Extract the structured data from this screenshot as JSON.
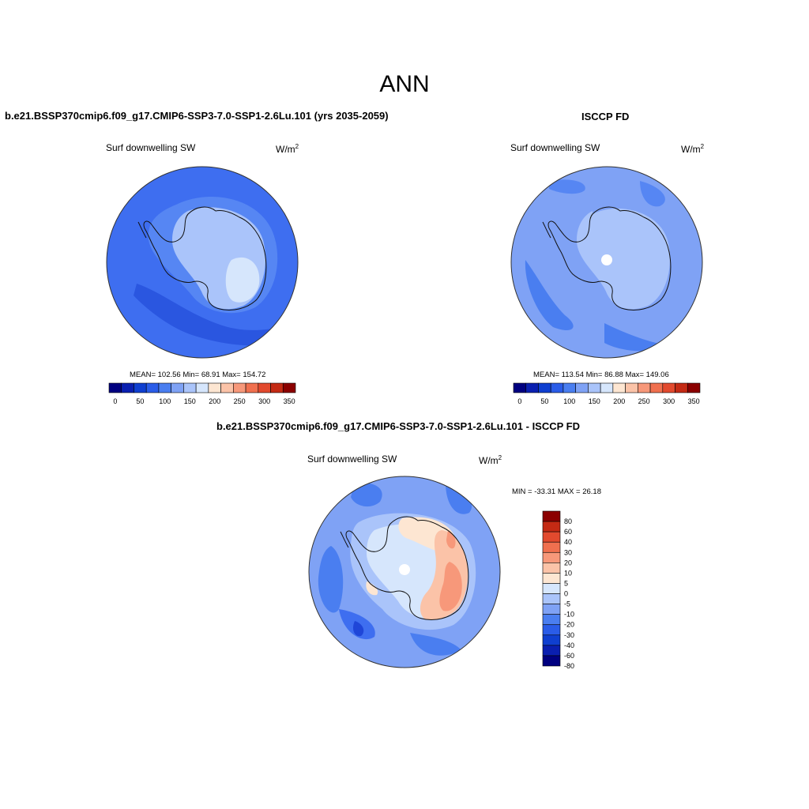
{
  "title": "ANN",
  "panels": [
    {
      "id": "model",
      "title": "b.e21.BSSP370cmip6.f09_g17.CMIP6-SSP3-7.0-SSP1-2.6Lu.101 (yrs 2035-2059)",
      "variable": "Surf downwelling SW",
      "units": "W/m",
      "units_sup": "2",
      "stats": "MEAN= 102.56  Min=  68.91  Max= 154.72"
    },
    {
      "id": "obs",
      "title": "ISCCP FD",
      "variable": "Surf downwelling SW",
      "units": "W/m",
      "units_sup": "2",
      "stats": "MEAN= 113.54  Min=  86.88  Max= 149.06"
    },
    {
      "id": "diff",
      "title": "b.e21.BSSP370cmip6.f09_g17.CMIP6-SSP3-7.0-SSP1-2.6Lu.101 - ISCCP FD",
      "variable": "Surf downwelling SW",
      "units": "W/m",
      "units_sup": "2",
      "stats": "MIN = -33.31 MAX =  26.18"
    }
  ],
  "colorbar_abs": {
    "colors": [
      "#000080",
      "#0a1fb0",
      "#0f3fd0",
      "#2a5ce8",
      "#4a7ef0",
      "#7fa2f5",
      "#aac4fa",
      "#d6e6fc",
      "#fde6d2",
      "#fbc3a8",
      "#f7987a",
      "#f0704f",
      "#e24a2e",
      "#c42a14",
      "#8b0000"
    ],
    "labels": [
      "0",
      "50",
      "100",
      "150",
      "200",
      "250",
      "300",
      "350"
    ]
  },
  "colorbar_diff": {
    "colors": [
      "#8b0000",
      "#c42a14",
      "#e24a2e",
      "#f0704f",
      "#f7987a",
      "#fbc3a8",
      "#fde6d2",
      "#d6e6fc",
      "#aac4fa",
      "#7fa2f5",
      "#4a7ef0",
      "#2a5ce8",
      "#0f3fd0",
      "#0a1fb0",
      "#000080"
    ],
    "labels": [
      "80",
      "60",
      "40",
      "30",
      "20",
      "10",
      "5",
      "0",
      "-5",
      "-10",
      "-20",
      "-30",
      "-40",
      "-60",
      "-80"
    ]
  }
}
